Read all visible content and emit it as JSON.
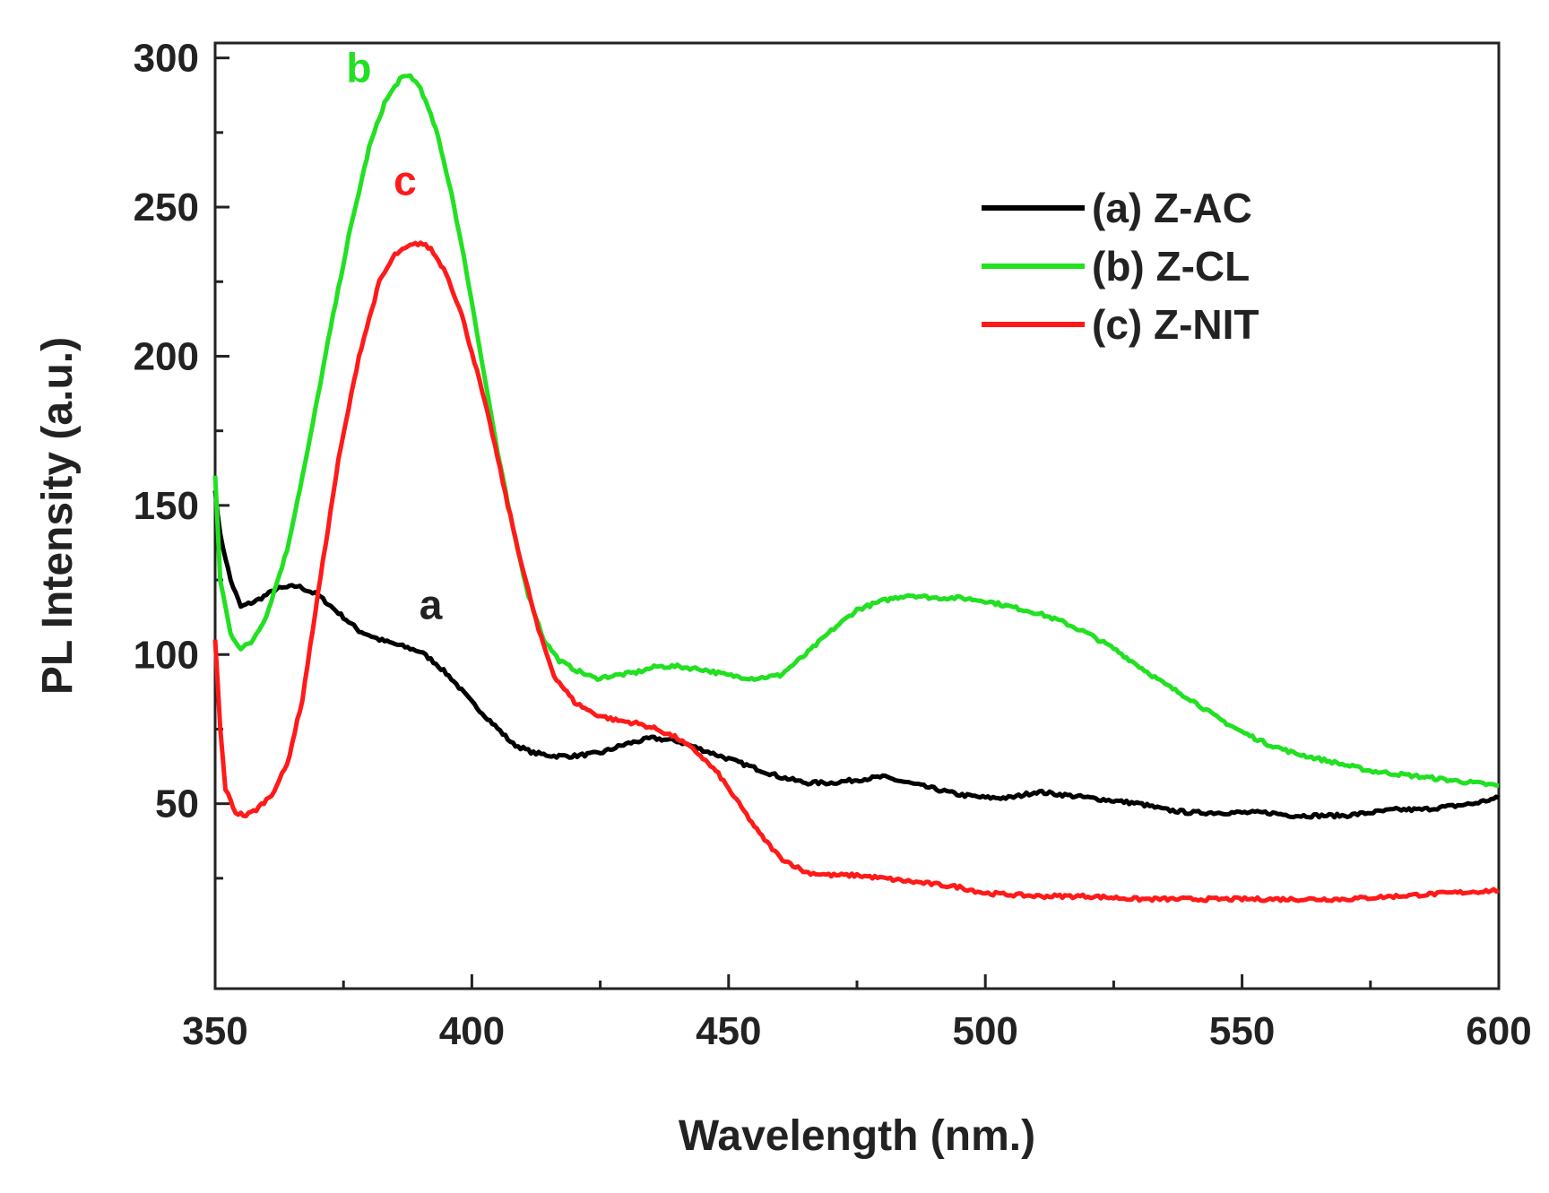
{
  "chart_data": {
    "type": "line",
    "title": "",
    "xlabel": "Wavelength (nm.)",
    "ylabel": "PL Intensity (a.u.)",
    "xlim": [
      350,
      600
    ],
    "ylim": [
      0,
      300
    ],
    "x_ticks": [
      350,
      400,
      450,
      500,
      550,
      600
    ],
    "y_ticks": [
      50,
      100,
      150,
      200,
      250,
      300
    ],
    "legend_position": "top-right",
    "series": [
      {
        "name": "(a) Z-AC",
        "annotation": "a",
        "color": "#000000",
        "x": [
          350,
          351,
          353,
          355,
          358,
          362,
          366,
          370,
          374,
          378,
          382,
          386,
          390,
          393,
          396,
          400,
          404,
          408,
          412,
          416,
          420,
          425,
          430,
          435,
          440,
          445,
          450,
          455,
          460,
          465,
          470,
          475,
          480,
          485,
          490,
          495,
          500,
          505,
          510,
          515,
          520,
          525,
          530,
          535,
          540,
          545,
          550,
          555,
          560,
          565,
          570,
          575,
          580,
          585,
          590,
          595,
          600
        ],
        "y": [
          155,
          140,
          125,
          116,
          118,
          122,
          123,
          120,
          114,
          108,
          105,
          103,
          101,
          97,
          92,
          84,
          77,
          70,
          67,
          66,
          66,
          67,
          70,
          72,
          71,
          68,
          65,
          62,
          59,
          57,
          57,
          58,
          59,
          57,
          55,
          53,
          52,
          52,
          54,
          53,
          52,
          51,
          50,
          48,
          47,
          47,
          47,
          47,
          46,
          46,
          46,
          47,
          48,
          48,
          49,
          50,
          52
        ]
      },
      {
        "name": "(b) Z-CL",
        "annotation": "b",
        "color": "#22e022",
        "x": [
          350,
          351,
          353,
          355,
          357,
          360,
          364,
          368,
          372,
          376,
          380,
          383,
          386,
          388,
          390,
          393,
          396,
          399,
          402,
          405,
          408,
          411,
          414,
          417,
          420,
          424,
          428,
          432,
          436,
          440,
          445,
          450,
          455,
          460,
          465,
          470,
          475,
          480,
          485,
          490,
          495,
          500,
          505,
          510,
          515,
          520,
          525,
          530,
          535,
          540,
          545,
          550,
          555,
          560,
          565,
          570,
          575,
          580,
          585,
          590,
          595,
          600
        ],
        "y": [
          160,
          125,
          107,
          102,
          104,
          113,
          135,
          168,
          205,
          240,
          270,
          285,
          293,
          294,
          290,
          276,
          255,
          228,
          198,
          168,
          142,
          120,
          105,
          98,
          95,
          92,
          93,
          94,
          96,
          96,
          95,
          93,
          92,
          93,
          100,
          108,
          115,
          118,
          120,
          119,
          119,
          118,
          116,
          114,
          111,
          107,
          102,
          96,
          90,
          85,
          79,
          74,
          70,
          67,
          65,
          63,
          61,
          60,
          59,
          58,
          57,
          56
        ]
      },
      {
        "name": "(c) Z-NIT",
        "annotation": "c",
        "color": "#ff1a1a",
        "x": [
          350,
          351,
          352,
          354,
          356,
          358,
          361,
          364,
          367,
          370,
          374,
          378,
          382,
          385,
          388,
          390,
          392,
          395,
          398,
          401,
          404,
          407,
          410,
          413,
          416,
          420,
          424,
          428,
          432,
          436,
          440,
          444,
          448,
          452,
          456,
          460,
          465,
          470,
          475,
          480,
          485,
          490,
          495,
          500,
          510,
          520,
          530,
          540,
          550,
          560,
          570,
          580,
          590,
          600
        ],
        "y": [
          105,
          75,
          55,
          47,
          46,
          48,
          53,
          63,
          85,
          120,
          165,
          200,
          225,
          234,
          237,
          238,
          236,
          228,
          214,
          195,
          174,
          150,
          128,
          108,
          93,
          84,
          80,
          78,
          77,
          75,
          72,
          67,
          60,
          50,
          40,
          32,
          27,
          26,
          26,
          25,
          24,
          23,
          22,
          20,
          19,
          19,
          18,
          18,
          18,
          18,
          18,
          19,
          20,
          21
        ]
      }
    ]
  }
}
